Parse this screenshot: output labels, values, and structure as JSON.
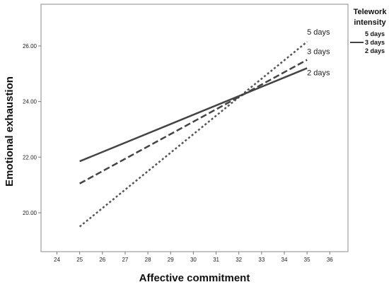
{
  "chart_data": {
    "type": "line",
    "title": "",
    "xlabel": "Affective commitment",
    "ylabel": "Emotional exhaustion",
    "xlim": [
      23.3,
      36.8
    ],
    "ylim": [
      18.6,
      27.5
    ],
    "xticks": [
      "24",
      "25",
      "26",
      "27",
      "28",
      "29",
      "30",
      "31",
      "32",
      "33",
      "34",
      "35",
      "36"
    ],
    "yticks": [
      "20.00",
      "22.00",
      "24.00",
      "26.00"
    ],
    "grid": false,
    "legend": {
      "title_line1": "Telework",
      "title_line2": "intensity",
      "entries": [
        "5 days",
        "3 days",
        "2 days"
      ],
      "placement": "right"
    },
    "series": [
      {
        "name": "5 days",
        "x": [
          25,
          35
        ],
        "y": [
          19.5,
          26.15
        ],
        "style": "dotted",
        "color": "#555555"
      },
      {
        "name": "3 days",
        "x": [
          25,
          35
        ],
        "y": [
          21.05,
          25.5
        ],
        "style": "dashed",
        "color": "#444444"
      },
      {
        "name": "2 days",
        "x": [
          25,
          35
        ],
        "y": [
          21.85,
          25.2
        ],
        "style": "solid",
        "color": "#444444"
      }
    ]
  }
}
